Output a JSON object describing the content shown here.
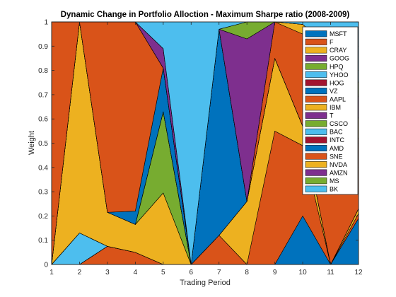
{
  "chart_data": {
    "type": "area",
    "stacked": true,
    "title": "Dynamic Change in Portfolio Alloction - Maximum Sharpe ratio (2008-2009)",
    "xlabel": "Trading Period",
    "ylabel": "Weight",
    "xlim": [
      1,
      12
    ],
    "ylim": [
      0,
      1
    ],
    "x": [
      1,
      2,
      3,
      4,
      5,
      6,
      7,
      8,
      9,
      10,
      11,
      12
    ],
    "xticks": [
      "1",
      "2",
      "3",
      "4",
      "5",
      "6",
      "7",
      "8",
      "9",
      "10",
      "11",
      "12"
    ],
    "yticks": [
      "0",
      "0.1",
      "0.2",
      "0.3",
      "0.4",
      "0.5",
      "0.6",
      "0.7",
      "0.8",
      "0.9",
      "1"
    ],
    "grid": false,
    "box": true,
    "legend_position": "top-right",
    "series": [
      {
        "name": "MSFT",
        "color": "#0072BD",
        "values": [
          0,
          0,
          0,
          0,
          0,
          0,
          0,
          0,
          0,
          0,
          0,
          0
        ]
      },
      {
        "name": "F",
        "color": "#D95319",
        "values": [
          0,
          0,
          0.075,
          0.05,
          0,
          0,
          0,
          0,
          0,
          0,
          0,
          0
        ]
      },
      {
        "name": "CRAY",
        "color": "#EDB120",
        "values": [
          0,
          0,
          0,
          0,
          0,
          0,
          0,
          0,
          0,
          0,
          0,
          0
        ]
      },
      {
        "name": "GOOG",
        "color": "#7E2F8E",
        "values": [
          0,
          0,
          0,
          0,
          0,
          0,
          0,
          0,
          0,
          0,
          0,
          0
        ]
      },
      {
        "name": "HPQ",
        "color": "#77AC30",
        "values": [
          0,
          0,
          0,
          0,
          0,
          0,
          0,
          0,
          0,
          0,
          0,
          0
        ]
      },
      {
        "name": "YHOO",
        "color": "#4DBEEE",
        "values": [
          0,
          0.13,
          0,
          0,
          0,
          0,
          0,
          0,
          0,
          0,
          0,
          0
        ]
      },
      {
        "name": "HOG",
        "color": "#A2142F",
        "values": [
          0,
          0,
          0,
          0,
          0,
          0,
          0,
          0,
          0,
          0,
          0,
          0
        ]
      },
      {
        "name": "VZ",
        "color": "#0072BD",
        "values": [
          0,
          0,
          0,
          0,
          0,
          0,
          0,
          0,
          0,
          0.2,
          0,
          0.19
        ]
      },
      {
        "name": "AAPL",
        "color": "#D95319",
        "values": [
          0,
          0,
          0,
          0,
          0,
          0,
          0.12,
          0,
          0.55,
          0.29,
          0,
          0.02
        ]
      },
      {
        "name": "IBM",
        "color": "#EDB120",
        "values": [
          0,
          0.87,
          0.14,
          0.115,
          0.295,
          0,
          0,
          0.26,
          0.3,
          0.08,
          0,
          0.02
        ]
      },
      {
        "name": "T",
        "color": "#7E2F8E",
        "values": [
          0,
          0,
          0,
          0,
          0,
          0,
          0,
          0,
          0,
          0,
          0,
          0
        ]
      },
      {
        "name": "CSCO",
        "color": "#77AC30",
        "values": [
          0,
          0,
          0,
          0,
          0.335,
          0,
          0,
          0,
          0,
          0,
          0,
          0
        ]
      },
      {
        "name": "BAC",
        "color": "#4DBEEE",
        "values": [
          0,
          0,
          0,
          0,
          0,
          0,
          0,
          0,
          0,
          0,
          0,
          0
        ]
      },
      {
        "name": "INTC",
        "color": "#A2142F",
        "values": [
          0,
          0,
          0,
          0,
          0,
          0,
          0,
          0,
          0,
          0,
          0,
          0
        ]
      },
      {
        "name": "AMD",
        "color": "#0072BD",
        "values": [
          0,
          0,
          0,
          0.055,
          0.18,
          0,
          0.85,
          0,
          0,
          0,
          0,
          0
        ]
      },
      {
        "name": "SNE",
        "color": "#D95319",
        "values": [
          1,
          0,
          0.785,
          0.78,
          0,
          0,
          0,
          0,
          0.15,
          0.38,
          0.6,
          0.29
        ]
      },
      {
        "name": "NVDA",
        "color": "#EDB120",
        "values": [
          0,
          0,
          0,
          0,
          0,
          0,
          0,
          0,
          0,
          0.04,
          0.29,
          0.08
        ]
      },
      {
        "name": "AMZN",
        "color": "#7E2F8E",
        "values": [
          0,
          0,
          0,
          0,
          0.08,
          0,
          0,
          0.67,
          0,
          0,
          0,
          0.09
        ]
      },
      {
        "name": "MS",
        "color": "#77AC30",
        "values": [
          0,
          0,
          0,
          0,
          0,
          0,
          0,
          0.07,
          0,
          0,
          0,
          0.06
        ]
      },
      {
        "name": "BK",
        "color": "#4DBEEE",
        "values": [
          0,
          0,
          0,
          0,
          0.11,
          1,
          0.03,
          0,
          0,
          0.01,
          0.11,
          0.25
        ]
      }
    ]
  }
}
